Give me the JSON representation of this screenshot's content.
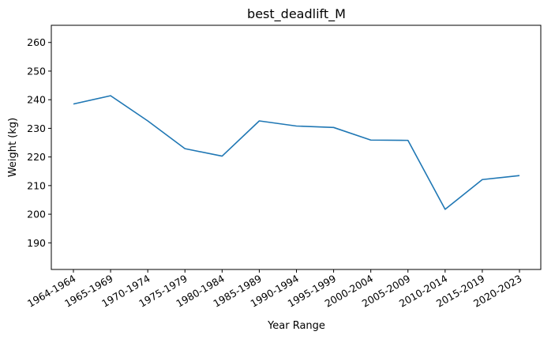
{
  "chart_data": {
    "type": "line",
    "title": "best_deadlift_M",
    "xlabel": "Year Range",
    "ylabel": "Weight (kg)",
    "categories": [
      "1964-1964",
      "1965-1969",
      "1970-1974",
      "1975-1979",
      "1980-1984",
      "1985-1989",
      "1990-1994",
      "1995-1999",
      "2000-2004",
      "2005-2009",
      "2010-2014",
      "2015-2019",
      "2020-2023"
    ],
    "series": [
      {
        "values": [
          238.5,
          241.4,
          232.6,
          222.9,
          220.3,
          232.6,
          230.8,
          230.3,
          225.9,
          225.8,
          201.7,
          212.1,
          213.5
        ],
        "color": "#1f77b4"
      }
    ],
    "ylim": [
      180.7,
      266.0
    ],
    "yticks": [
      190,
      200,
      210,
      220,
      230,
      240,
      250,
      260
    ],
    "xtick_rotation": 30,
    "grid": false
  }
}
